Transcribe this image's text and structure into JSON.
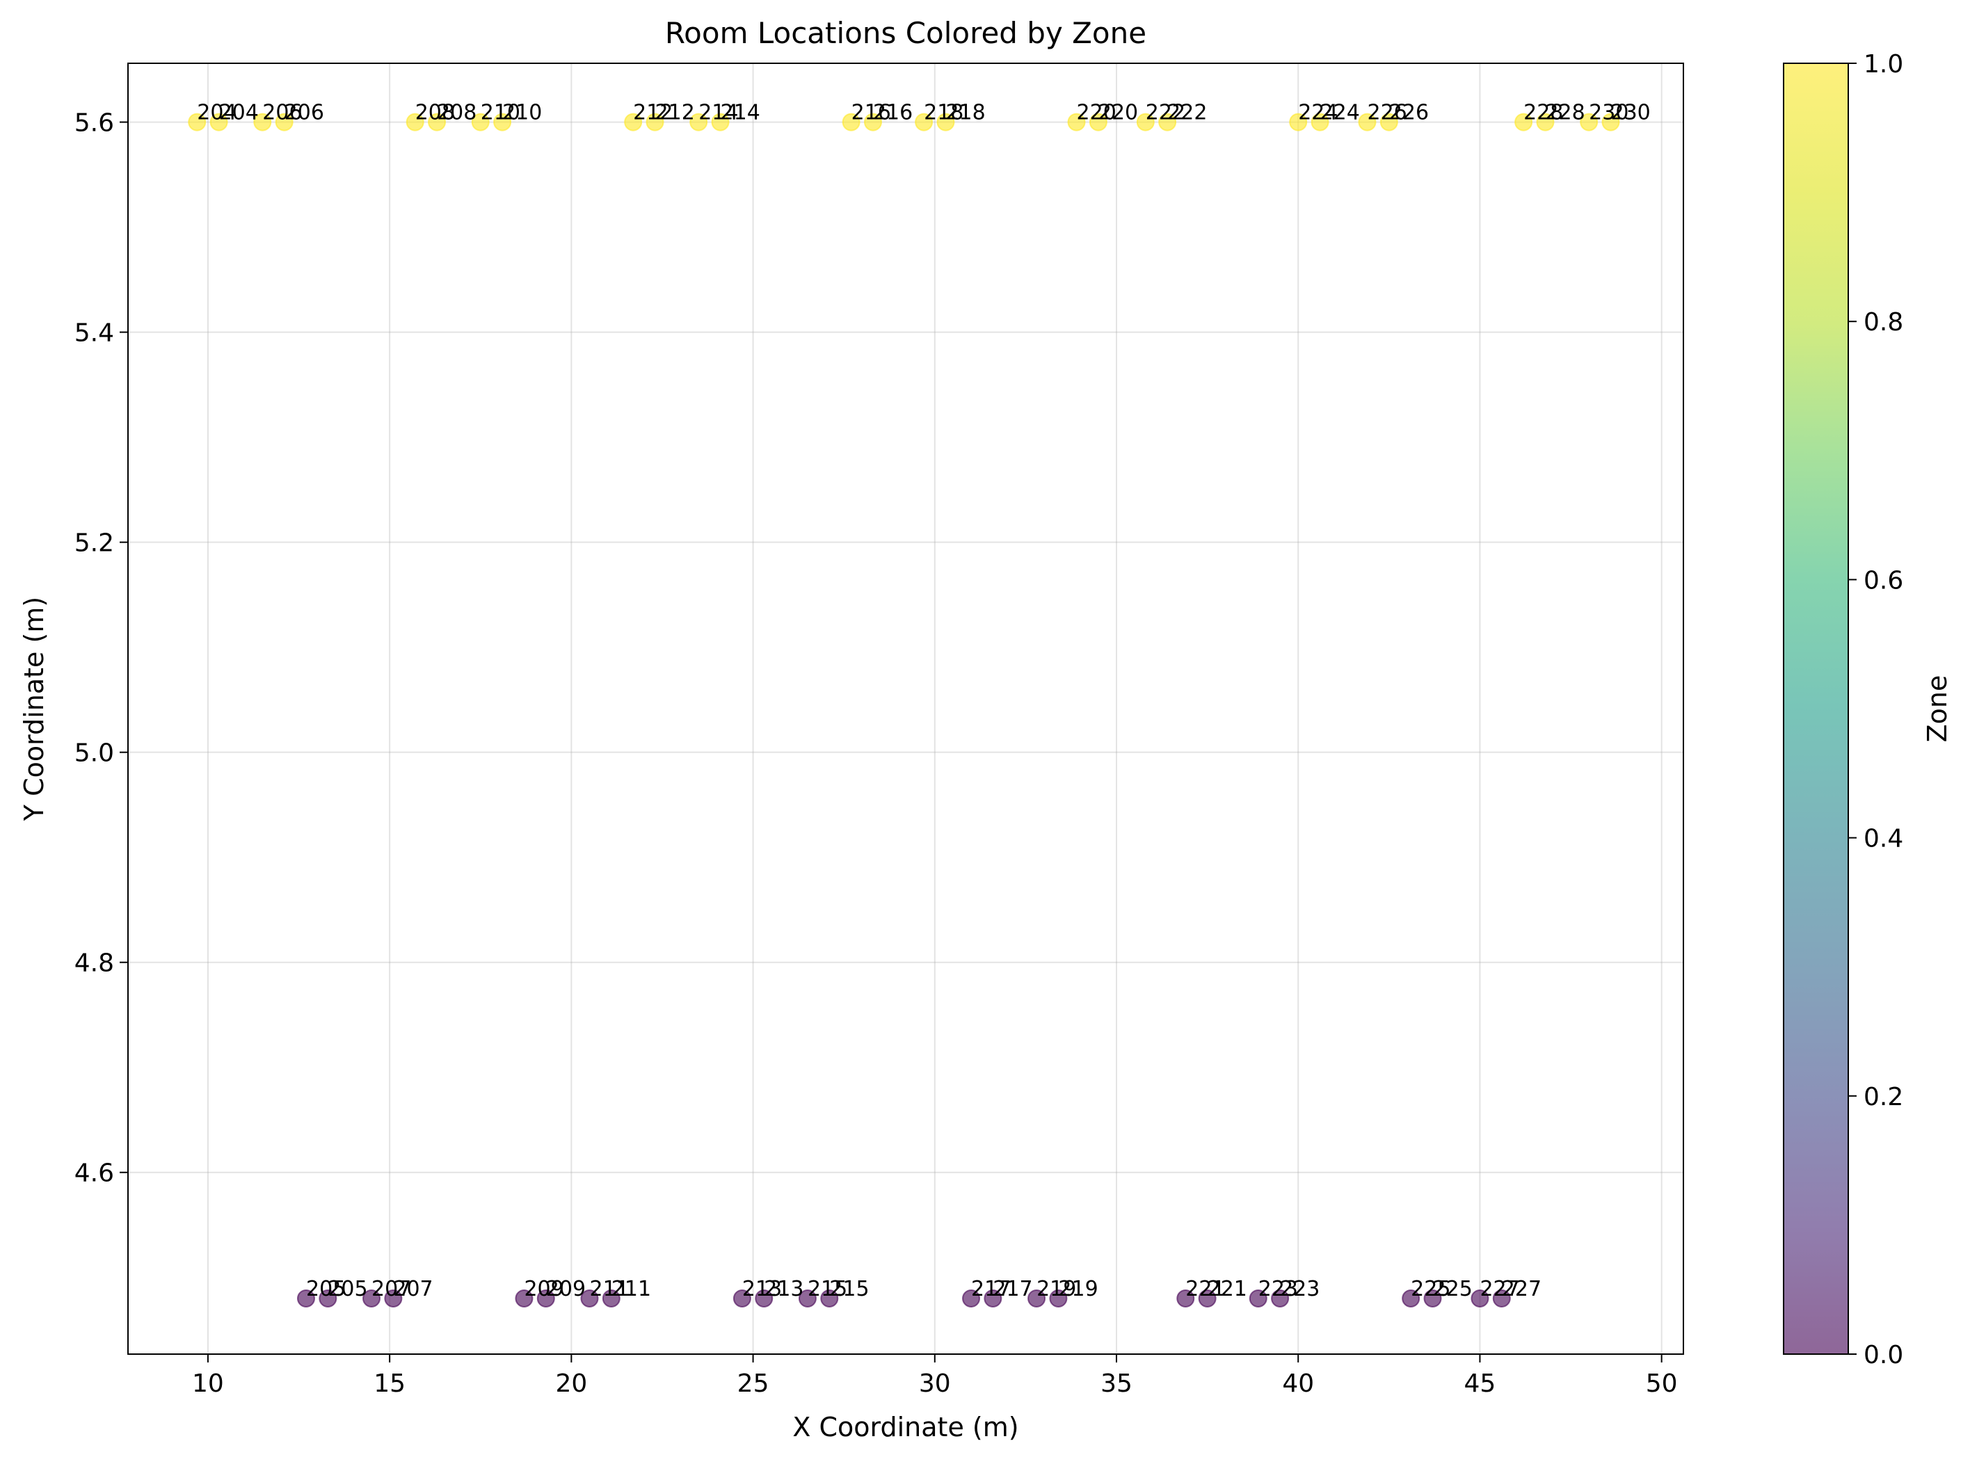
{
  "chart_data": {
    "type": "scatter",
    "title": "Room Locations Colored by Zone",
    "xlabel": "X Coordinate (m)",
    "ylabel": "Y Coordinate (m)",
    "xlim": [
      7.8,
      50.6
    ],
    "ylim": [
      4.427,
      5.656
    ],
    "x_ticks": [
      10,
      15,
      20,
      25,
      30,
      35,
      40,
      45,
      50
    ],
    "y_ticks": [
      4.6,
      4.8,
      5.0,
      5.2,
      5.4,
      5.6
    ],
    "grid": true,
    "colorbar": {
      "label": "Zone",
      "range": [
        0.0,
        1.0
      ],
      "ticks": [
        "0.0",
        "0.2",
        "0.4",
        "0.6",
        "0.8",
        "1.0"
      ],
      "colormap": "viridis",
      "alpha": 0.6
    },
    "series": [
      {
        "zone": 1,
        "color": "#fde725",
        "y": 5.6,
        "points": [
          {
            "x": 9.7,
            "label": "204"
          },
          {
            "x": 10.3,
            "label": "204"
          },
          {
            "x": 11.5,
            "label": "206"
          },
          {
            "x": 12.1,
            "label": "206"
          },
          {
            "x": 15.7,
            "label": "208"
          },
          {
            "x": 16.3,
            "label": "208"
          },
          {
            "x": 17.5,
            "label": "210"
          },
          {
            "x": 18.1,
            "label": "210"
          },
          {
            "x": 21.7,
            "label": "212"
          },
          {
            "x": 22.3,
            "label": "212"
          },
          {
            "x": 23.5,
            "label": "214"
          },
          {
            "x": 24.1,
            "label": "214"
          },
          {
            "x": 27.7,
            "label": "216"
          },
          {
            "x": 28.3,
            "label": "216"
          },
          {
            "x": 29.7,
            "label": "218"
          },
          {
            "x": 30.3,
            "label": "218"
          },
          {
            "x": 33.9,
            "label": "220"
          },
          {
            "x": 34.5,
            "label": "220"
          },
          {
            "x": 35.8,
            "label": "222"
          },
          {
            "x": 36.4,
            "label": "222"
          },
          {
            "x": 40.0,
            "label": "224"
          },
          {
            "x": 40.6,
            "label": "224"
          },
          {
            "x": 41.9,
            "label": "226"
          },
          {
            "x": 42.5,
            "label": "226"
          },
          {
            "x": 46.2,
            "label": "228"
          },
          {
            "x": 46.8,
            "label": "228"
          },
          {
            "x": 48.0,
            "label": "230"
          },
          {
            "x": 48.6,
            "label": "230"
          }
        ]
      },
      {
        "zone": 0,
        "color": "#440154",
        "y": 4.48,
        "points": [
          {
            "x": 12.7,
            "label": "205"
          },
          {
            "x": 13.3,
            "label": "205"
          },
          {
            "x": 14.5,
            "label": "207"
          },
          {
            "x": 15.1,
            "label": "207"
          },
          {
            "x": 18.7,
            "label": "209"
          },
          {
            "x": 19.3,
            "label": "209"
          },
          {
            "x": 20.5,
            "label": "211"
          },
          {
            "x": 21.1,
            "label": "211"
          },
          {
            "x": 24.7,
            "label": "213"
          },
          {
            "x": 25.3,
            "label": "213"
          },
          {
            "x": 26.5,
            "label": "215"
          },
          {
            "x": 27.1,
            "label": "215"
          },
          {
            "x": 31.0,
            "label": "217"
          },
          {
            "x": 31.6,
            "label": "217"
          },
          {
            "x": 32.8,
            "label": "219"
          },
          {
            "x": 33.4,
            "label": "219"
          },
          {
            "x": 36.9,
            "label": "221"
          },
          {
            "x": 37.5,
            "label": "221"
          },
          {
            "x": 38.9,
            "label": "223"
          },
          {
            "x": 39.5,
            "label": "223"
          },
          {
            "x": 43.1,
            "label": "225"
          },
          {
            "x": 43.7,
            "label": "225"
          },
          {
            "x": 45.0,
            "label": "227"
          },
          {
            "x": 45.6,
            "label": "227"
          }
        ]
      }
    ]
  }
}
